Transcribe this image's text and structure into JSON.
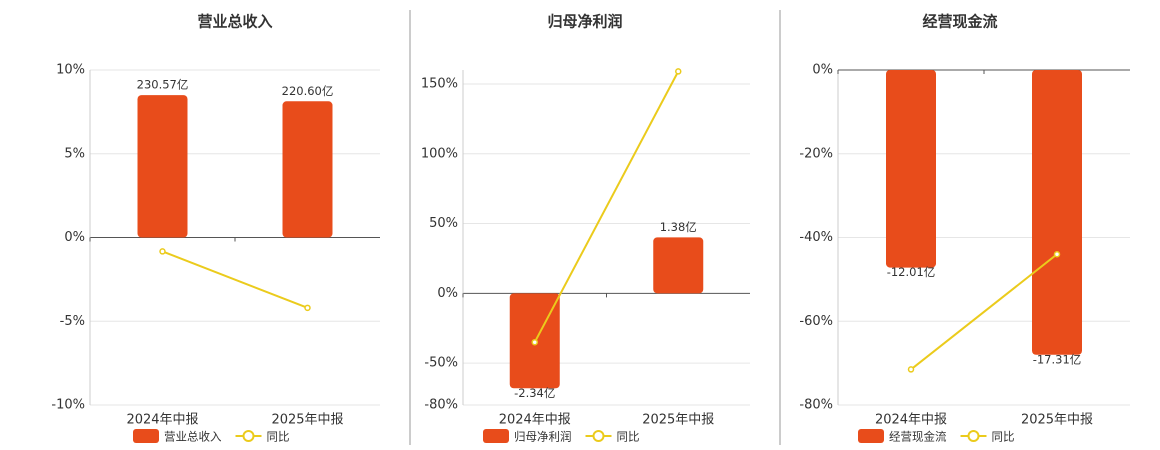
{
  "chart_data": [
    {
      "type": "combo",
      "title": "营业总收入",
      "categories": [
        "2024年中报",
        "2025年中报"
      ],
      "series": [
        {
          "name": "营业总收入",
          "color": "#e84c1b",
          "kind": "bar",
          "values": [
            230.57,
            220.6
          ],
          "value_labels": [
            "230.57亿",
            "220.60亿"
          ]
        },
        {
          "name": "同比",
          "color": "#ebcb1c",
          "kind": "line",
          "values": [
            -0.83,
            -4.2
          ]
        }
      ],
      "ylim": [
        -10,
        10
      ],
      "yticks": [
        {
          "value": -10,
          "label": "-10%"
        },
        {
          "value": -5,
          "label": "-5%"
        },
        {
          "value": 0,
          "label": "0%"
        },
        {
          "value": 5,
          "label": "5%"
        },
        {
          "value": 10,
          "label": "10%"
        }
      ]
    },
    {
      "type": "combo",
      "title": "归母净利润",
      "categories": [
        "2024年中报",
        "2025年中报"
      ],
      "series": [
        {
          "name": "归母净利润",
          "color": "#e84c1b",
          "kind": "bar",
          "values": [
            -2.34,
            1.38
          ],
          "value_labels": [
            "-2.34亿",
            "1.38亿"
          ]
        },
        {
          "name": "同比",
          "color": "#ebcb1c",
          "kind": "line",
          "values": [
            -35,
            159
          ]
        }
      ],
      "ylim": [
        -80,
        160
      ],
      "yticks": [
        {
          "value": -80,
          "label": "-80%"
        },
        {
          "value": -50,
          "label": "-50%"
        },
        {
          "value": 0,
          "label": "0%"
        },
        {
          "value": 50,
          "label": "50%"
        },
        {
          "value": 100,
          "label": "100%"
        },
        {
          "value": 150,
          "label": "150%"
        }
      ]
    },
    {
      "type": "combo",
      "title": "经营现金流",
      "categories": [
        "2024年中报",
        "2025年中报"
      ],
      "series": [
        {
          "name": "经营现金流",
          "color": "#e84c1b",
          "kind": "bar",
          "values": [
            -12.01,
            -17.31
          ],
          "value_labels": [
            "-12.01亿",
            "-17.31亿"
          ]
        },
        {
          "name": "同比",
          "color": "#ebcb1c",
          "kind": "line",
          "values": [
            -71.5,
            -44
          ]
        }
      ],
      "ylim": [
        -80,
        0
      ],
      "yticks": [
        {
          "value": -80,
          "label": "-80%"
        },
        {
          "value": -60,
          "label": "-60%"
        },
        {
          "value": -40,
          "label": "-40%"
        },
        {
          "value": -20,
          "label": "-20%"
        },
        {
          "value": 0,
          "label": "0%"
        }
      ]
    }
  ]
}
